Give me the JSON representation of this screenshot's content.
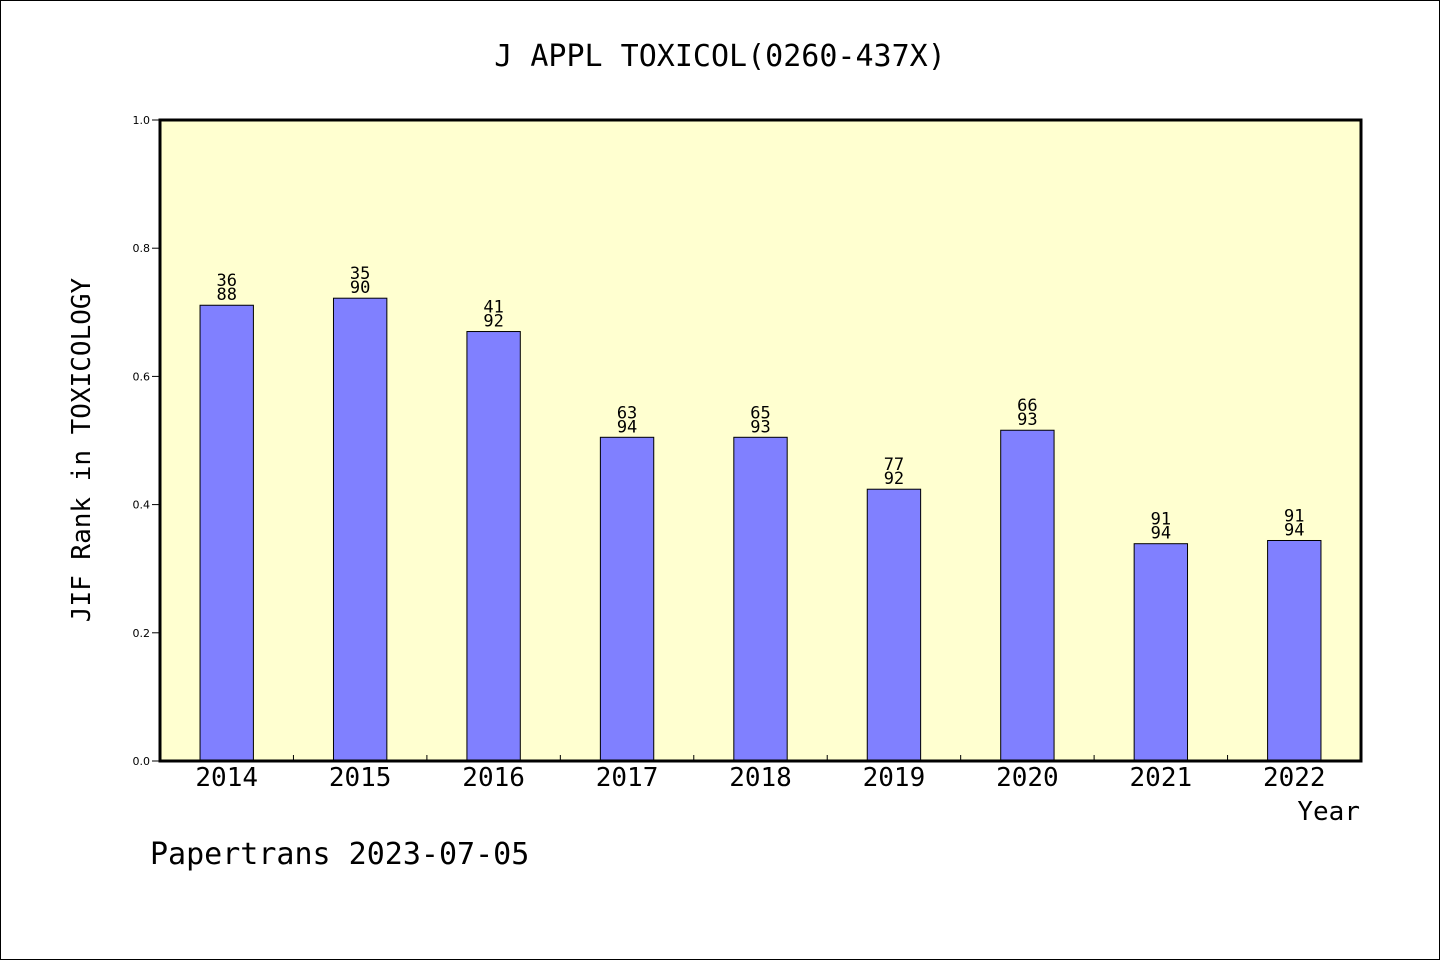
{
  "chart_data": {
    "type": "bar",
    "title": "J APPL TOXICOL(0260-437X)",
    "xlabel": "Year",
    "ylabel": "JIF Rank in TOXICOLOGY",
    "categories": [
      "2014",
      "2015",
      "2016",
      "2017",
      "2018",
      "2019",
      "2020",
      "2021",
      "2022"
    ],
    "values": [
      0.711,
      0.722,
      0.67,
      0.505,
      0.505,
      0.424,
      0.516,
      0.339,
      0.344
    ],
    "rank": [
      "36",
      "35",
      "41",
      "63",
      "65",
      "77",
      "66",
      "91",
      "91"
    ],
    "total": [
      "88",
      "90",
      "92",
      "94",
      "93",
      "92",
      "93",
      "94",
      "94"
    ],
    "ylim": [
      0,
      1.0
    ],
    "yticks": [
      "0.0",
      "0.2",
      "0.4",
      "0.6",
      "0.8",
      "1.0"
    ],
    "grid": false,
    "colors": {
      "plot_background": "#ffffd0",
      "bar_fill": "#8080ff",
      "bar_stroke": "#000000"
    }
  },
  "footer": "Papertrans 2023-07-05"
}
